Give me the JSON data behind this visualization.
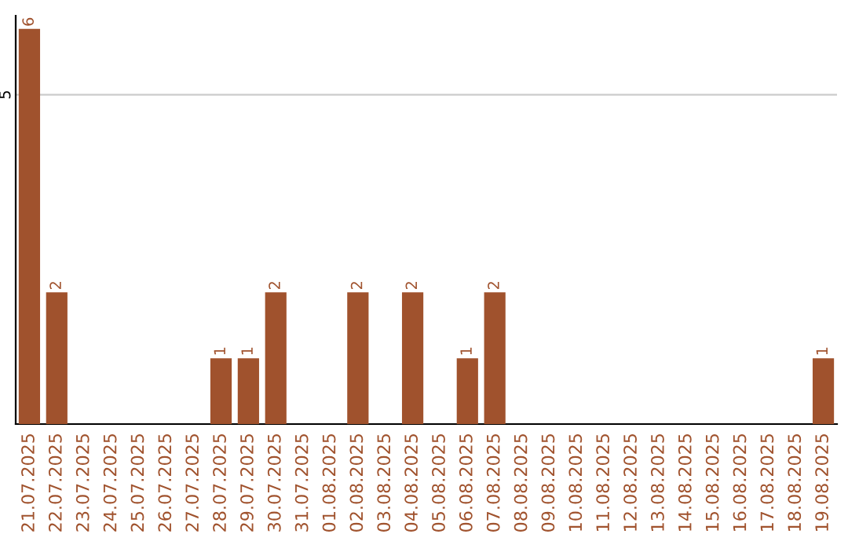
{
  "chart_data": {
    "type": "bar",
    "categories": [
      "21.07.2025",
      "22.07.2025",
      "23.07.2025",
      "24.07.2025",
      "25.07.2025",
      "26.07.2025",
      "27.07.2025",
      "28.07.2025",
      "29.07.2025",
      "30.07.2025",
      "31.07.2025",
      "01.08.2025",
      "02.08.2025",
      "03.08.2025",
      "04.08.2025",
      "05.08.2025",
      "06.08.2025",
      "07.08.2025",
      "08.08.2025",
      "09.08.2025",
      "10.08.2025",
      "11.08.2025",
      "12.08.2025",
      "13.08.2025",
      "14.08.2025",
      "15.08.2025",
      "16.08.2025",
      "17.08.2025",
      "18.08.2025",
      "19.08.2025"
    ],
    "values": [
      6,
      2,
      0,
      0,
      0,
      0,
      0,
      1,
      1,
      2,
      0,
      0,
      2,
      0,
      2,
      0,
      1,
      2,
      0,
      0,
      0,
      0,
      0,
      0,
      0,
      0,
      0,
      0,
      0,
      1
    ],
    "value_labels": [
      "6",
      "2",
      null,
      null,
      null,
      null,
      null,
      "1",
      "1",
      "2",
      null,
      null,
      "2",
      null,
      "2",
      null,
      "1",
      "2",
      null,
      null,
      null,
      null,
      null,
      null,
      null,
      null,
      null,
      null,
      null,
      "1"
    ],
    "color": "#a0522d",
    "ylim": [
      0,
      6.2
    ],
    "yticks": [
      5
    ],
    "grid": "y"
  }
}
